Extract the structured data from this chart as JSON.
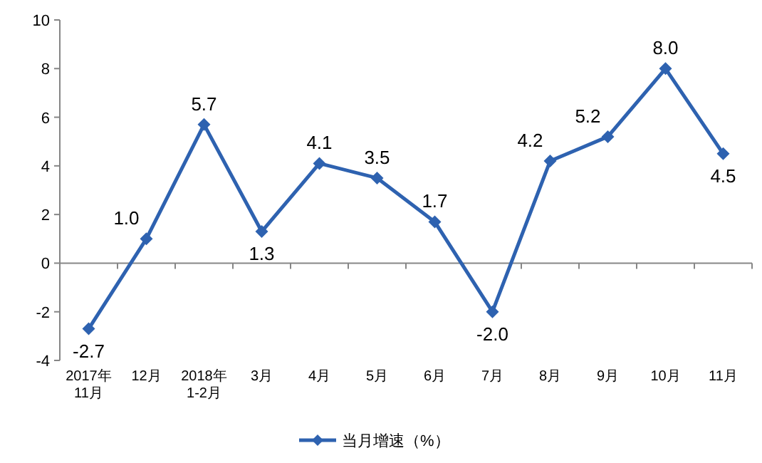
{
  "chart_data": {
    "type": "line",
    "categories": [
      "2017年\n11月",
      "12月",
      "2018年\n1-2月",
      "3月",
      "4月",
      "5月",
      "6月",
      "7月",
      "8月",
      "9月",
      "10月",
      "11月"
    ],
    "series": [
      {
        "name": "当月增速（%）",
        "color": "#2e62b0",
        "values": [
          -2.7,
          1.0,
          5.7,
          1.3,
          4.1,
          3.5,
          1.7,
          -2.0,
          4.2,
          5.2,
          8.0,
          4.5
        ],
        "value_labels": [
          "-2.7",
          "1.0",
          "5.7",
          "1.3",
          "4.1",
          "3.5",
          "1.7",
          "-2.0",
          "4.2",
          "5.2",
          "8.0",
          "4.5"
        ]
      }
    ],
    "ylim": [
      -4,
      10
    ],
    "yticks": [
      -4,
      -2,
      0,
      2,
      4,
      6,
      8,
      10
    ],
    "marker": "diamond",
    "line_style": "solid",
    "legend": "bottom"
  }
}
